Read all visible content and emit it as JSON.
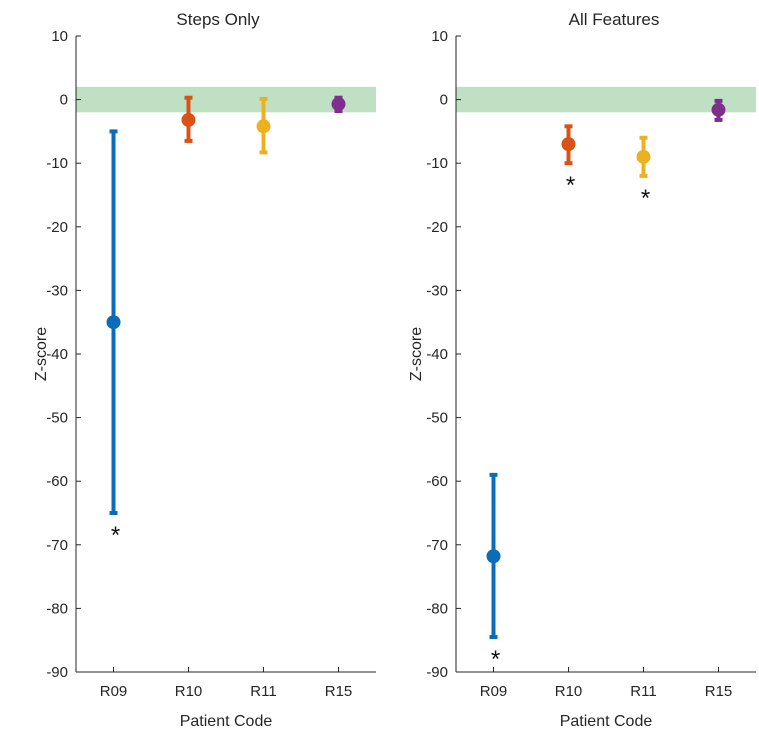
{
  "chart_data": [
    {
      "type": "errorbar",
      "title": "Steps Only",
      "xlabel": "Patient Code",
      "ylabel": "Z-score",
      "categories": [
        "R09",
        "R10",
        "R11",
        "R15"
      ],
      "ylim": [
        -90,
        10
      ],
      "yticks": [
        10,
        0,
        -10,
        -20,
        -30,
        -40,
        -50,
        -60,
        -70,
        -80,
        -90
      ],
      "normal_band": [
        -2,
        2
      ],
      "normal_band_color": "#bfe0c3",
      "series": [
        {
          "category": "R09",
          "value": -35,
          "lower": -65,
          "upper": -5,
          "color": "#0b6db7",
          "significance": "*"
        },
        {
          "category": "R10",
          "value": -3.2,
          "lower": -6.5,
          "upper": 0.3,
          "color": "#d95319",
          "significance": ""
        },
        {
          "category": "R11",
          "value": -4.2,
          "lower": -8.3,
          "upper": 0.1,
          "color": "#edb120",
          "significance": ""
        },
        {
          "category": "R15",
          "value": -0.7,
          "lower": -1.8,
          "upper": 0.3,
          "color": "#7e2f8e",
          "significance": ""
        }
      ]
    },
    {
      "type": "errorbar",
      "title": "All Features",
      "xlabel": "Patient Code",
      "ylabel": "Z-score",
      "categories": [
        "R09",
        "R10",
        "R11",
        "R15"
      ],
      "ylim": [
        -90,
        10
      ],
      "yticks": [
        10,
        0,
        -10,
        -20,
        -30,
        -40,
        -50,
        -60,
        -70,
        -80,
        -90
      ],
      "normal_band": [
        -2,
        2
      ],
      "normal_band_color": "#bfe0c3",
      "series": [
        {
          "category": "R09",
          "value": -71.8,
          "lower": -84.5,
          "upper": -59,
          "color": "#0b6db7",
          "significance": "*"
        },
        {
          "category": "R10",
          "value": -7,
          "lower": -10,
          "upper": -4.2,
          "color": "#d95319",
          "significance": "*"
        },
        {
          "category": "R11",
          "value": -9,
          "lower": -12,
          "upper": -6,
          "color": "#edb120",
          "significance": "*"
        },
        {
          "category": "R15",
          "value": -1.6,
          "lower": -3.2,
          "upper": -0.2,
          "color": "#7e2f8e",
          "significance": ""
        }
      ]
    }
  ]
}
